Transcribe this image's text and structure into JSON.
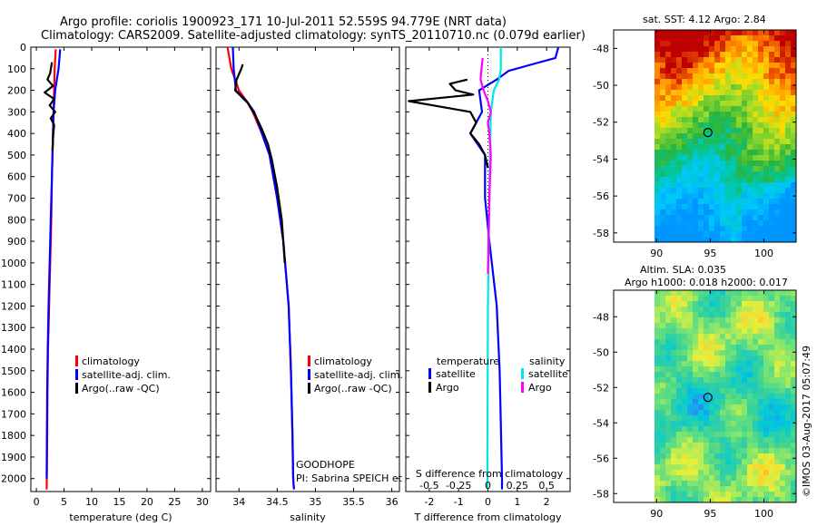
{
  "header": {
    "title_line1": "Argo profile: coriolis 1900923_171 10-Jul-2011 52.559S 94.779E (NRT data)",
    "title_line2": "Climatology: CARS2009. Satellite-adjusted climatology: synTS_20110710.nc (0.079d earlier)"
  },
  "colors": {
    "climatology": "#ff0000",
    "satellite_adj": "#0000ff",
    "argo": "#000000",
    "salinity_satellite": "#00e5e5",
    "salinity_argo": "#ff00ff"
  },
  "chart_data": [
    {
      "id": "temperature",
      "type": "line",
      "xlabel": "temperature (deg C)",
      "ylabel": "",
      "xlim": [
        -1,
        31.5
      ],
      "ylim": [
        2060,
        0
      ],
      "xticks": [
        0,
        5,
        10,
        15,
        20,
        25,
        30
      ],
      "xtick_labels": [
        "0",
        "5",
        "10",
        "15",
        "20",
        "25",
        "30"
      ],
      "yticks": [
        0,
        100,
        200,
        300,
        400,
        500,
        600,
        700,
        800,
        900,
        1000,
        1100,
        1200,
        1300,
        1400,
        1500,
        1600,
        1700,
        1800,
        1900,
        2000
      ],
      "ytick_labels": [
        "0",
        "100",
        "200",
        "300",
        "400",
        "500",
        "600",
        "700",
        "800",
        "900",
        "1000",
        "1100",
        "1200",
        "1300",
        "1400",
        "1500",
        "1600",
        "1700",
        "1800",
        "1900",
        "2000"
      ],
      "legend": [
        "climatology",
        "satellite-adj. clim.",
        "Argo(..raw -QC)"
      ],
      "series": [
        {
          "name": "climatology",
          "color": "#ff0000",
          "x": [
            3.5,
            3.3,
            3.2,
            3.1,
            3.0,
            2.9,
            2.8,
            2.7,
            2.5,
            2.3,
            2.1,
            2.0,
            1.95,
            1.9,
            1.85
          ],
          "y": [
            10,
            100,
            200,
            300,
            400,
            500,
            600,
            800,
            1000,
            1200,
            1400,
            1600,
            1800,
            1950,
            2050
          ]
        },
        {
          "name": "satellite-adj. clim.",
          "color": "#0000ff",
          "x": [
            4.3,
            4.0,
            3.4,
            3.1,
            3.0,
            2.9,
            2.8,
            2.6,
            2.4,
            2.2,
            2.05,
            1.95,
            1.9,
            1.85
          ],
          "y": [
            10,
            100,
            200,
            300,
            400,
            500,
            600,
            800,
            1000,
            1200,
            1400,
            1600,
            1800,
            2000
          ]
        },
        {
          "name": "Argo(..raw -QC)",
          "color": "#000000",
          "x": [
            2.8,
            2.5,
            2.0,
            3.0,
            1.5,
            3.2,
            2.4,
            3.4,
            2.6,
            3.2,
            3.0,
            2.9
          ],
          "y": [
            70,
            120,
            150,
            180,
            210,
            240,
            270,
            300,
            330,
            360,
            420,
            480
          ]
        }
      ]
    },
    {
      "id": "salinity",
      "type": "line",
      "xlabel": "salinity",
      "ylabel": "",
      "xlim": [
        33.7,
        36.1
      ],
      "ylim": [
        2060,
        0
      ],
      "xticks": [
        34,
        34.5,
        35,
        35.5,
        36
      ],
      "xtick_labels": [
        "34",
        "34.5",
        "35",
        "35.5",
        "36"
      ],
      "legend": [
        "climatology",
        "satellite-adj. clim.",
        "Argo(..raw -QC)"
      ],
      "annotations": [
        "GOODHOPE",
        "PI: Sabrina SPEICH et Michel ARHAN"
      ],
      "series": [
        {
          "name": "climatology",
          "color": "#ff0000",
          "x": [
            33.85,
            33.9,
            34.0,
            34.1,
            34.18,
            34.3,
            34.4,
            34.5,
            34.58,
            34.65,
            34.68,
            34.7,
            34.71,
            34.72
          ],
          "y": [
            0,
            100,
            200,
            250,
            300,
            400,
            500,
            700,
            900,
            1200,
            1500,
            1800,
            2000,
            2050
          ]
        },
        {
          "name": "satellite-adj. clim.",
          "color": "#0000ff",
          "x": [
            33.92,
            33.93,
            33.96,
            34.1,
            34.2,
            34.3,
            34.4,
            34.5,
            34.58,
            34.65,
            34.68,
            34.7,
            34.71,
            34.72
          ],
          "y": [
            0,
            100,
            200,
            250,
            300,
            400,
            500,
            700,
            900,
            1200,
            1500,
            1800,
            2000,
            2050
          ]
        },
        {
          "name": "Argo(..raw -QC)",
          "color": "#000000",
          "x": [
            34.05,
            34.03,
            33.97,
            33.95,
            34.12,
            34.22,
            34.3,
            34.38,
            34.43,
            34.5,
            34.56,
            34.6
          ],
          "y": [
            80,
            100,
            150,
            200,
            260,
            320,
            380,
            450,
            520,
            650,
            800,
            1000
          ]
        }
      ]
    },
    {
      "id": "difference",
      "type": "line",
      "xlabel": "T difference from climatology",
      "x2label": "S difference from climatology",
      "ylabel": "",
      "xlim": [
        -2.8,
        2.8
      ],
      "ylim": [
        2060,
        0
      ],
      "xticks": [
        -2,
        -1,
        0,
        1,
        2
      ],
      "xtick_labels": [
        "-2",
        "-1",
        "0",
        "1",
        "2"
      ],
      "x2ticks": [
        -0.5,
        -0.25,
        0,
        0.25,
        0.5
      ],
      "x2tick_labels": [
        "-0.5",
        "-0.25",
        "0",
        "0.25",
        "0.5"
      ],
      "legend_titles": [
        "temperature",
        "salinity"
      ],
      "legend": [
        "satellite",
        "Argo",
        "satellite",
        "Argo"
      ],
      "series": [
        {
          "name": "T satellite",
          "color": "#0000ff",
          "x": [
            2.4,
            2.3,
            1.5,
            0.7,
            0.3,
            -0.3,
            -0.2,
            -0.6,
            -0.1,
            -0.1,
            0.05,
            0.3,
            0.4,
            0.45,
            0.48,
            0.48
          ],
          "y": [
            0,
            50,
            80,
            110,
            150,
            200,
            300,
            400,
            500,
            700,
            900,
            1200,
            1500,
            1800,
            2000,
            2050
          ]
        },
        {
          "name": "T Argo",
          "color": "#000000",
          "x": [
            -0.7,
            -1.3,
            -1.1,
            -0.5,
            -2.7,
            -0.6,
            -0.4,
            -0.6,
            -0.3,
            -0.1,
            0.0
          ],
          "y": [
            150,
            170,
            200,
            220,
            250,
            300,
            350,
            400,
            450,
            500,
            560
          ]
        },
        {
          "name": "S satellite",
          "color": "#00e5e5",
          "x": [
            0.44,
            0.44,
            0.44,
            0.38,
            0.2,
            0.1,
            0.07,
            0.04,
            0.02,
            0.0,
            -0.01,
            -0.02
          ],
          "y": [
            0,
            50,
            100,
            150,
            200,
            300,
            500,
            800,
            1000,
            1200,
            1600,
            2050
          ]
        },
        {
          "name": "S Argo",
          "color": "#ff00ff",
          "x": [
            -0.18,
            -0.22,
            -0.25,
            -0.15,
            0.0,
            0.1,
            0.0,
            0.05,
            0.1,
            0.05,
            0.02,
            0.0
          ],
          "y": [
            50,
            100,
            150,
            200,
            250,
            300,
            350,
            400,
            500,
            700,
            900,
            1050
          ]
        }
      ]
    },
    {
      "id": "sst_map",
      "type": "heatmap",
      "title": "sat. SST: 4.12 Argo: 2.84",
      "xlim": [
        86,
        103
      ],
      "ylim": [
        -58.5,
        -47
      ],
      "xticks": [
        90,
        95,
        100
      ],
      "xtick_labels": [
        "90",
        "95",
        "100"
      ],
      "yticks": [
        -48,
        -50,
        -52,
        -54,
        -56,
        -58
      ],
      "ytick_labels": [
        "-48",
        "-50",
        "-52",
        "-54",
        "-56",
        "-58"
      ],
      "marker": {
        "lon": 94.78,
        "lat": -52.56
      }
    },
    {
      "id": "sla_map",
      "type": "heatmap",
      "title_line1": "Altim. SLA: 0.035",
      "title_line2": "Argo h1000: 0.018 h2000: 0.017",
      "xlim": [
        86,
        103
      ],
      "ylim": [
        -58.5,
        -46.5
      ],
      "xticks": [
        90,
        95,
        100
      ],
      "xtick_labels": [
        "90",
        "95",
        "100"
      ],
      "yticks": [
        -48,
        -50,
        -52,
        -54,
        -56,
        -58
      ],
      "ytick_labels": [
        "-48",
        "-50",
        "-52",
        "-54",
        "-56",
        "-58"
      ],
      "marker": {
        "lon": 94.78,
        "lat": -52.56
      }
    }
  ],
  "footer": {
    "stamp": "©IMOS 03-Aug-2017 05:07:49"
  }
}
